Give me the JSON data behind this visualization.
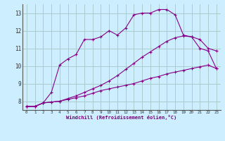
{
  "xlabel": "Windchill (Refroidissement éolien,°C)",
  "background_color": "#cceeff",
  "grid_color": "#aacccc",
  "line_color": "#880088",
  "x_values": [
    0,
    1,
    2,
    3,
    4,
    5,
    6,
    7,
    8,
    9,
    10,
    11,
    12,
    13,
    14,
    15,
    16,
    17,
    18,
    19,
    20,
    21,
    22,
    23
  ],
  "series1": [
    7.7,
    7.7,
    7.9,
    7.95,
    8.0,
    8.1,
    8.2,
    8.3,
    8.45,
    8.6,
    8.7,
    8.8,
    8.9,
    9.0,
    9.15,
    9.3,
    9.4,
    9.55,
    9.65,
    9.75,
    9.85,
    9.95,
    10.05,
    9.85
  ],
  "series2": [
    7.7,
    7.7,
    7.9,
    7.95,
    8.0,
    8.15,
    8.3,
    8.5,
    8.7,
    8.9,
    9.15,
    9.45,
    9.8,
    10.15,
    10.5,
    10.8,
    11.1,
    11.4,
    11.6,
    11.7,
    11.65,
    11.5,
    11.0,
    10.85
  ],
  "series3": [
    7.7,
    7.7,
    7.9,
    8.5,
    10.05,
    10.4,
    10.65,
    11.5,
    11.5,
    11.65,
    12.0,
    11.75,
    12.15,
    12.9,
    13.0,
    13.0,
    13.2,
    13.2,
    12.9,
    11.75,
    11.65,
    11.0,
    10.85,
    9.85
  ],
  "xlim": [
    -0.5,
    23.5
  ],
  "ylim": [
    7.5,
    13.5
  ],
  "yticks": [
    8,
    9,
    10,
    11,
    12,
    13
  ],
  "xticks": [
    0,
    1,
    2,
    3,
    4,
    5,
    6,
    7,
    8,
    9,
    10,
    11,
    12,
    13,
    14,
    15,
    16,
    17,
    18,
    19,
    20,
    21,
    22,
    23
  ]
}
